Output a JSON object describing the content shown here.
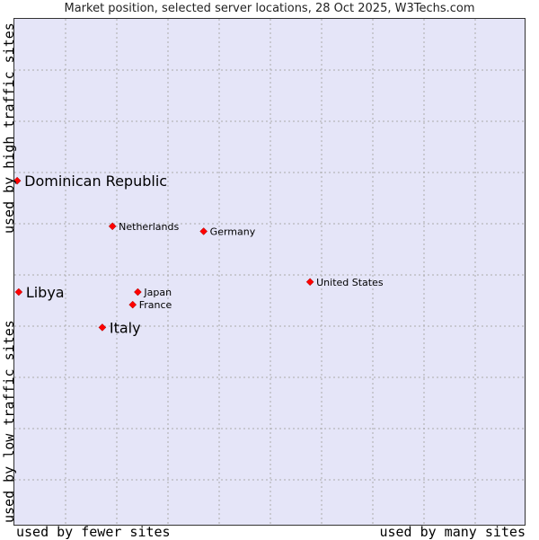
{
  "title": "Market position, selected server locations, 28 Oct 2025, W3Techs.com",
  "colors": {
    "background": "#e5e5f8",
    "point": "#ff0000",
    "grid": "#aaaaaa"
  },
  "chart_data": {
    "type": "scatter",
    "title": "Market position, selected server locations, 28 Oct 2025, W3Techs.com",
    "xlabel_low": "used by fewer sites",
    "xlabel_high": "used by many sites",
    "ylabel_low": "used by low traffic sites",
    "ylabel_high": "used by high traffic sites",
    "xlim": [
      0,
      10
    ],
    "ylim": [
      0,
      10
    ],
    "grid": true,
    "points": [
      {
        "label": "Dominican Republic",
        "x": 0.02,
        "y": 6.8,
        "highlight": true
      },
      {
        "label": "Netherlands",
        "x": 1.9,
        "y": 5.9,
        "highlight": false
      },
      {
        "label": "Germany",
        "x": 3.7,
        "y": 5.8,
        "highlight": false
      },
      {
        "label": "United States",
        "x": 5.8,
        "y": 4.8,
        "highlight": false
      },
      {
        "label": "Libya",
        "x": 0.05,
        "y": 4.6,
        "highlight": true
      },
      {
        "label": "Japan",
        "x": 2.4,
        "y": 4.6,
        "highlight": false
      },
      {
        "label": "France",
        "x": 2.3,
        "y": 4.35,
        "highlight": false
      },
      {
        "label": "Italy",
        "x": 1.7,
        "y": 3.9,
        "highlight": true
      }
    ]
  }
}
